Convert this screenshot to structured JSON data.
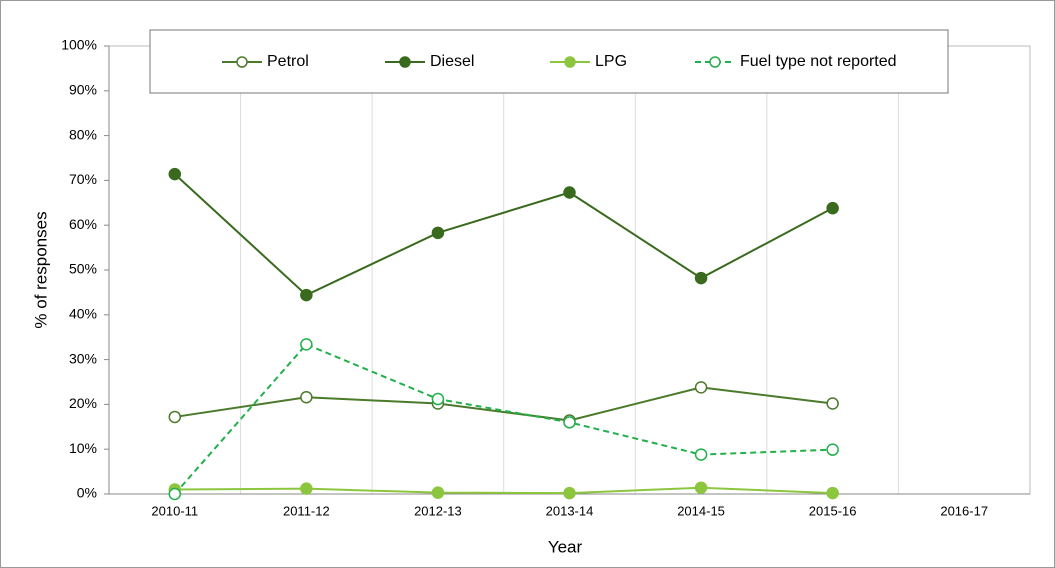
{
  "chart_data": {
    "type": "line",
    "categories": [
      "2010-11",
      "2011-12",
      "2012-13",
      "2013-14",
      "2014-15",
      "2015-16",
      "2016-17"
    ],
    "series": [
      {
        "name": "Petrol",
        "color": "#4a7a2a",
        "marker": "open",
        "dashed": false,
        "values": [
          17.2,
          21.6,
          20.2,
          16.4,
          23.8,
          20.2,
          null
        ]
      },
      {
        "name": "Diesel",
        "color": "#3a6a1e",
        "marker": "filled",
        "dashed": false,
        "values": [
          71.4,
          44.4,
          58.3,
          67.3,
          48.2,
          63.8,
          null
        ]
      },
      {
        "name": "LPG",
        "color": "#8cc63f",
        "marker": "filled",
        "dashed": false,
        "values": [
          1.0,
          1.2,
          0.3,
          0.2,
          1.4,
          0.2,
          null
        ]
      },
      {
        "name": "Fuel type not reported",
        "color": "#22b04b",
        "marker": "open",
        "dashed": true,
        "values": [
          0,
          33.4,
          21.2,
          16.0,
          8.8,
          9.9,
          null
        ]
      }
    ],
    "xlabel": "Year",
    "ylabel": "% of responses",
    "ylim": [
      0,
      100
    ],
    "yticks": [
      {
        "value": 0,
        "label": "0%"
      },
      {
        "value": 10,
        "label": "10%"
      },
      {
        "value": 20,
        "label": "20%"
      },
      {
        "value": 30,
        "label": "30%"
      },
      {
        "value": 40,
        "label": "40%"
      },
      {
        "value": 50,
        "label": "50%"
      },
      {
        "value": 60,
        "label": "60%"
      },
      {
        "value": 70,
        "label": "70%"
      },
      {
        "value": 80,
        "label": "80%"
      },
      {
        "value": 90,
        "label": "90%"
      },
      {
        "value": 100,
        "label": "100%"
      }
    ],
    "grid": "x",
    "legend": "top"
  }
}
